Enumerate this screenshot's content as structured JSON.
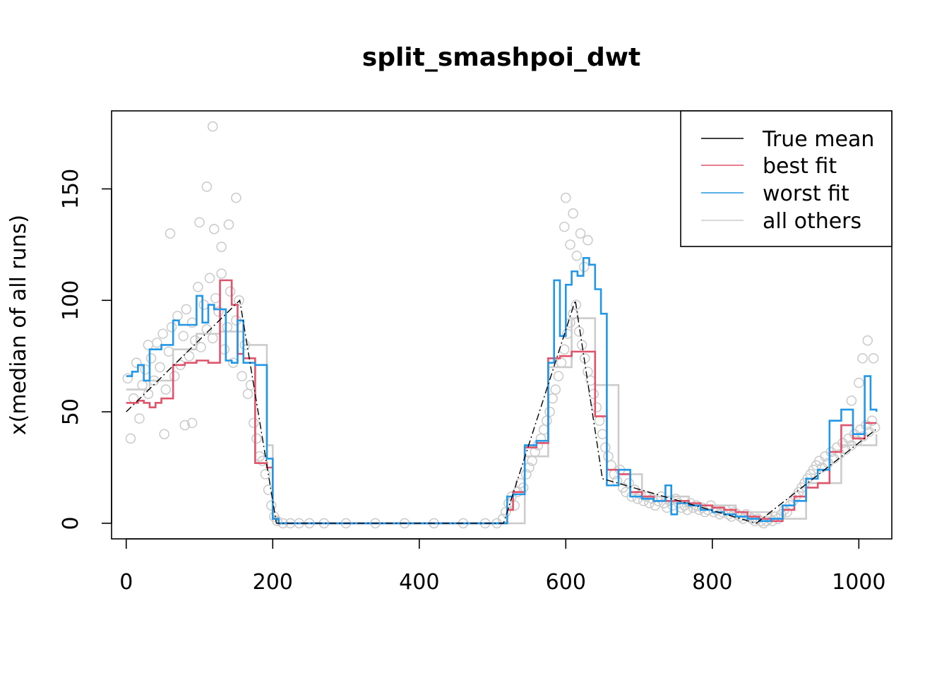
{
  "chart_data": {
    "type": "line",
    "title": "split_smashpoi_dwt",
    "xlabel": "",
    "ylabel": "x(median of all runs)",
    "xlim": [
      -20,
      1045
    ],
    "ylim": [
      -7,
      185
    ],
    "xticks": [
      0,
      200,
      400,
      600,
      800,
      1000
    ],
    "yticks": [
      0,
      50,
      100,
      150
    ],
    "legend": {
      "position": "top-right",
      "entries": [
        {
          "label": "True mean",
          "color": "#000000"
        },
        {
          "label": "best fit",
          "color": "#DF536B"
        },
        {
          "label": "worst fit",
          "color": "#2297E6"
        },
        {
          "label": "all others",
          "color": "#CCCCCC"
        }
      ]
    },
    "series": [
      {
        "name": "True mean",
        "color": "#000000",
        "style": "dashdot",
        "x": [
          0,
          155,
          205,
          515,
          613,
          650,
          860,
          1023
        ],
        "y": [
          50,
          100,
          0,
          0,
          100,
          20,
          0,
          42
        ]
      },
      {
        "name": "best fit",
        "color": "#DF536B",
        "style": "step",
        "x": [
          0,
          16,
          24,
          32,
          40,
          48,
          64,
          80,
          96,
          112,
          128,
          144,
          152,
          160,
          176,
          192,
          200,
          208,
          256,
          512,
          520,
          528,
          544,
          560,
          576,
          592,
          608,
          624,
          640,
          656,
          672,
          688,
          704,
          720,
          736,
          752,
          768,
          784,
          800,
          816,
          832,
          848,
          864,
          880,
          896,
          912,
          928,
          944,
          960,
          976,
          992,
          1008,
          1024
        ],
        "y": [
          54,
          55,
          54,
          52,
          54,
          56,
          71,
          72,
          73,
          72,
          109,
          98,
          76,
          74,
          27,
          25,
          2,
          0,
          0,
          0,
          6,
          14,
          34,
          36,
          74,
          75,
          77,
          77,
          48,
          24,
          22,
          14,
          12,
          10,
          10,
          10,
          9,
          8,
          7,
          6,
          5,
          3,
          2,
          1,
          6,
          12,
          16,
          18,
          32,
          44,
          38,
          45,
          45
        ]
      },
      {
        "name": "worst fit",
        "color": "#2297E6",
        "style": "step",
        "x": [
          0,
          8,
          16,
          24,
          32,
          48,
          64,
          72,
          80,
          96,
          104,
          112,
          120,
          136,
          144,
          152,
          160,
          176,
          192,
          200,
          208,
          256,
          512,
          520,
          528,
          544,
          560,
          576,
          584,
          592,
          600,
          608,
          616,
          624,
          632,
          640,
          648,
          656,
          672,
          688,
          704,
          720,
          736,
          744,
          752,
          768,
          784,
          800,
          816,
          832,
          848,
          864,
          880,
          896,
          912,
          928,
          944,
          960,
          976,
          992,
          1008,
          1016,
          1024
        ],
        "y": [
          66,
          68,
          71,
          64,
          78,
          80,
          91,
          89,
          89,
          102,
          90,
          98,
          96,
          73,
          72,
          91,
          72,
          71,
          29,
          2,
          0,
          0,
          0,
          12,
          13,
          35,
          37,
          72,
          109,
          84,
          107,
          113,
          111,
          119,
          116,
          105,
          94,
          17,
          24,
          12,
          11,
          10,
          17,
          4,
          9,
          8,
          6,
          5,
          4,
          3,
          2,
          1,
          2,
          8,
          10,
          20,
          24,
          46,
          51,
          40,
          66,
          51,
          50
        ]
      },
      {
        "name": "all others",
        "color": "#CCCCCC",
        "style": "step",
        "x": [
          0,
          32,
          64,
          96,
          128,
          160,
          192,
          200,
          208,
          512,
          544,
          576,
          608,
          640,
          672,
          704,
          768,
          832,
          880,
          928,
          976,
          1024
        ],
        "y": [
          60,
          64,
          78,
          85,
          86,
          80,
          35,
          3,
          0,
          0,
          30,
          70,
          92,
          62,
          22,
          12,
          8,
          5,
          2,
          18,
          35,
          40
        ]
      }
    ],
    "points": {
      "name": "observations",
      "color": "#CCCCCC",
      "x": [
        2,
        6,
        10,
        14,
        18,
        22,
        26,
        30,
        34,
        38,
        42,
        46,
        50,
        54,
        58,
        62,
        66,
        70,
        74,
        78,
        82,
        86,
        90,
        94,
        98,
        102,
        106,
        110,
        114,
        118,
        122,
        126,
        130,
        134,
        138,
        142,
        146,
        150,
        154,
        158,
        162,
        166,
        170,
        174,
        178,
        182,
        186,
        190,
        194,
        198,
        202,
        206,
        214,
        224,
        236,
        250,
        270,
        300,
        340,
        380,
        420,
        460,
        490,
        506,
        514,
        518,
        522,
        526,
        530,
        534,
        538,
        542,
        546,
        550,
        554,
        558,
        562,
        566,
        570,
        574,
        578,
        582,
        586,
        590,
        594,
        598,
        602,
        606,
        610,
        614,
        618,
        622,
        626,
        630,
        634,
        638,
        642,
        646,
        650,
        654,
        658,
        662,
        666,
        670,
        674,
        678,
        682,
        686,
        690,
        694,
        698,
        702,
        706,
        710,
        714,
        718,
        722,
        726,
        730,
        734,
        738,
        742,
        746,
        750,
        754,
        758,
        762,
        766,
        770,
        774,
        778,
        782,
        786,
        790,
        794,
        798,
        802,
        806,
        810,
        814,
        818,
        822,
        826,
        830,
        834,
        838,
        842,
        846,
        850,
        854,
        858,
        862,
        866,
        870,
        874,
        878,
        882,
        886,
        890,
        894,
        898,
        902,
        906,
        910,
        914,
        918,
        922,
        926,
        930,
        934,
        938,
        942,
        946,
        950,
        954,
        958,
        962,
        966,
        970,
        974,
        978,
        982,
        986,
        990,
        994,
        998,
        1002,
        1006,
        1010,
        1014,
        1018,
        1022,
        30,
        60,
        110,
        118,
        120,
        140,
        150,
        130,
        100,
        52,
        80,
        90,
        600,
        610,
        620,
        630,
        598,
        606,
        615,
        625,
        1005,
        1012,
        1020,
        990,
        1000
      ],
      "y": [
        65,
        38,
        56,
        72,
        47,
        62,
        69,
        58,
        74,
        64,
        81,
        70,
        85,
        60,
        77,
        88,
        66,
        93,
        71,
        84,
        96,
        75,
        90,
        82,
        106,
        79,
        98,
        87,
        110,
        83,
        101,
        95,
        112,
        78,
        88,
        104,
        72,
        91,
        100,
        66,
        80,
        58,
        62,
        45,
        38,
        30,
        28,
        22,
        15,
        8,
        3,
        1,
        0,
        0,
        0,
        0,
        0,
        0,
        0,
        0,
        0,
        0,
        0,
        0,
        2,
        5,
        9,
        12,
        8,
        14,
        18,
        16,
        22,
        25,
        28,
        32,
        35,
        38,
        42,
        46,
        50,
        56,
        60,
        66,
        72,
        78,
        85,
        90,
        94,
        98,
        86,
        80,
        74,
        68,
        64,
        58,
        52,
        46,
        40,
        34,
        30,
        26,
        22,
        19,
        24,
        16,
        14,
        18,
        12,
        15,
        11,
        13,
        10,
        12,
        9,
        11,
        8,
        10,
        12,
        9,
        7,
        10,
        8,
        11,
        9,
        7,
        8,
        6,
        9,
        7,
        8,
        6,
        7,
        5,
        6,
        8,
        5,
        6,
        4,
        5,
        6,
        4,
        3,
        5,
        4,
        3,
        2,
        4,
        3,
        2,
        1,
        2,
        1,
        0,
        1,
        2,
        1,
        3,
        2,
        4,
        6,
        5,
        8,
        10,
        12,
        14,
        16,
        18,
        20,
        22,
        24,
        26,
        28,
        25,
        30,
        27,
        32,
        29,
        34,
        31,
        36,
        33,
        38,
        35,
        40,
        37,
        42,
        39,
        44,
        41,
        46,
        43,
        80,
        130,
        151,
        178,
        132,
        134,
        146,
        124,
        135,
        40,
        44,
        45,
        146,
        139,
        130,
        127,
        133,
        125,
        120,
        115,
        74,
        82,
        74,
        55,
        63
      ]
    }
  }
}
